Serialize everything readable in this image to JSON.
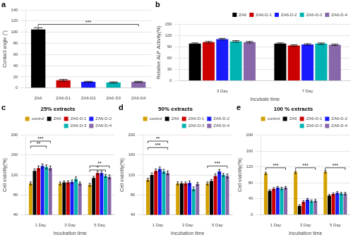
{
  "chart_data": [
    {
      "type": "bar",
      "panel_label": "a",
      "categories": [
        "ZA6",
        "ZA6-D1",
        "ZA6-D2",
        "ZA6-D3",
        "ZA6-D4"
      ],
      "values": [
        105,
        14,
        11,
        10,
        11
      ],
      "errors": [
        3,
        1.5,
        1,
        1,
        1
      ],
      "colors": [
        "#000000",
        "#cc0000",
        "#1a1aff",
        "#00b3b3",
        "#8866aa"
      ],
      "ylabel": "Contact angle (°)",
      "ylim": [
        0,
        140
      ],
      "yticks": [
        0,
        20,
        40,
        60,
        80,
        100,
        120,
        140
      ],
      "grid": "y",
      "annotations": [
        {
          "text": "***",
          "from": "ZA6",
          "to": "ZA6-D4",
          "y": 114
        }
      ]
    },
    {
      "type": "bar",
      "panel_label": "b",
      "categories": [
        "3 Day",
        "7 Day"
      ],
      "series": [
        {
          "name": "ZA6",
          "color": "#000000",
          "values": [
            98,
            98
          ],
          "errors": [
            2,
            2
          ]
        },
        {
          "name": "ZA6-D-1",
          "color": "#cc0000",
          "values": [
            102,
            93
          ],
          "errors": [
            2,
            2
          ]
        },
        {
          "name": "ZA6-D-2",
          "color": "#1a1aff",
          "values": [
            110,
            96
          ],
          "errors": [
            2,
            2
          ]
        },
        {
          "name": "ZA6-D-3",
          "color": "#00b3b3",
          "values": [
            104,
            98
          ],
          "errors": [
            2,
            2
          ]
        },
        {
          "name": "ZA6-D-4",
          "color": "#8866aa",
          "values": [
            102,
            95
          ],
          "errors": [
            2,
            2
          ]
        }
      ],
      "ylabel": "Relative ALP Activity(%)",
      "xlabel": "Incubate time",
      "ylim": [
        0,
        150
      ],
      "yticks": [
        0,
        30,
        60,
        90,
        120,
        150
      ],
      "grid": "y",
      "legend": "upper right"
    },
    {
      "type": "bar",
      "panel_label": "c",
      "title": "25% extracts",
      "categories": [
        "1 Day",
        "3 Day",
        "5 Day"
      ],
      "series": [
        {
          "name": "control",
          "color": "#d4a000",
          "values": [
            103,
            103,
            100
          ],
          "errors": [
            3,
            3,
            3
          ]
        },
        {
          "name": "ZA6",
          "color": "#000000",
          "values": [
            128,
            105,
            114
          ],
          "errors": [
            4,
            3,
            3
          ]
        },
        {
          "name": "ZA6-D-1",
          "color": "#cc0000",
          "values": [
            134,
            105,
            124
          ],
          "errors": [
            4,
            3,
            4
          ]
        },
        {
          "name": "ZA6-D-2",
          "color": "#1a1aff",
          "values": [
            138,
            106,
            124
          ],
          "errors": [
            4,
            4,
            4
          ]
        },
        {
          "name": "ZA6-D-3",
          "color": "#00b3b3",
          "values": [
            136,
            112,
            118
          ],
          "errors": [
            4,
            4,
            3
          ]
        },
        {
          "name": "ZA6-D-4",
          "color": "#8866aa",
          "values": [
            134,
            103,
            116
          ],
          "errors": [
            4,
            3,
            4
          ]
        }
      ],
      "ylabel": "Cell viability(%)",
      "xlabel": "Incubation time",
      "ylim": [
        40,
        200
      ],
      "yticks": [
        40,
        80,
        120,
        160,
        200
      ],
      "grid": "y",
      "legend": "upper right",
      "annotations": [
        {
          "text": "***",
          "category": "1 Day",
          "from": "control",
          "to": "ZA6-D-4",
          "y": 188
        },
        {
          "text": "**",
          "category": "1 Day",
          "from": "control",
          "to": "ZA6-D-3",
          "y": 178
        },
        {
          "text": "**",
          "category": "5 Day",
          "from": "control",
          "to": "ZA6-D-4",
          "y": 138
        },
        {
          "text": "*",
          "category": "5 Day",
          "from": "control",
          "to": "ZA6-D-3",
          "y": 130
        }
      ]
    },
    {
      "type": "bar",
      "panel_label": "d",
      "title": "50% extracts",
      "categories": [
        "1 Day",
        "3 Day",
        "5 Day"
      ],
      "series": [
        {
          "name": "control",
          "color": "#d4a000",
          "values": [
            110,
            103,
            103
          ],
          "errors": [
            3,
            3,
            3
          ]
        },
        {
          "name": "ZA6",
          "color": "#000000",
          "values": [
            120,
            103,
            108
          ],
          "errors": [
            4,
            3,
            3
          ]
        },
        {
          "name": "ZA6-D-1",
          "color": "#cc0000",
          "values": [
            128,
            103,
            118
          ],
          "errors": [
            4,
            3,
            4
          ]
        },
        {
          "name": "ZA6-D-2",
          "color": "#1a1aff",
          "values": [
            132,
            104,
            127
          ],
          "errors": [
            4,
            4,
            4
          ]
        },
        {
          "name": "ZA6-D-3",
          "color": "#00b3b3",
          "values": [
            127,
            92,
            120
          ],
          "errors": [
            4,
            4,
            3
          ]
        },
        {
          "name": "ZA6-D-4",
          "color": "#8866aa",
          "values": [
            124,
            102,
            118
          ],
          "errors": [
            4,
            3,
            4
          ]
        }
      ],
      "ylabel": "Cell viability(%)",
      "xlabel": "Incubation time",
      "ylim": [
        40,
        200
      ],
      "yticks": [
        40,
        80,
        120,
        160,
        200
      ],
      "grid": "y",
      "legend": "upper right",
      "annotations": [
        {
          "text": "**",
          "category": "1 Day",
          "from": "control",
          "to": "ZA6-D-4",
          "y": 188
        },
        {
          "text": "***",
          "category": "1 Day",
          "from": "control",
          "to": "ZA6-D-4",
          "y": 175
        },
        {
          "text": "***",
          "category": "5 Day",
          "from": "control",
          "to": "ZA6-D-4",
          "y": 138
        }
      ]
    },
    {
      "type": "bar",
      "panel_label": "e",
      "title": "100 % extracts",
      "categories": [
        "1 Day",
        "3 Day",
        "5 Day"
      ],
      "series": [
        {
          "name": "control",
          "color": "#d4a000",
          "values": [
            104,
            107,
            108
          ],
          "errors": [
            3,
            3,
            3
          ]
        },
        {
          "name": "ZA6",
          "color": "#000000",
          "values": [
            60,
            22,
            48
          ],
          "errors": [
            3,
            3,
            3
          ]
        },
        {
          "name": "ZA6-D-1",
          "color": "#cc0000",
          "values": [
            65,
            32,
            52
          ],
          "errors": [
            3,
            3,
            3
          ]
        },
        {
          "name": "ZA6-D-2",
          "color": "#1a1aff",
          "values": [
            68,
            38,
            55
          ],
          "errors": [
            3,
            3,
            3
          ]
        },
        {
          "name": "ZA6-D-3",
          "color": "#00b3b3",
          "values": [
            66,
            34,
            53
          ],
          "errors": [
            3,
            3,
            3
          ]
        },
        {
          "name": "ZA6-D-4",
          "color": "#8866aa",
          "values": [
            68,
            35,
            53
          ],
          "errors": [
            3,
            3,
            3
          ]
        }
      ],
      "ylabel": "Cell viability(%)",
      "xlabel": "Incubation time",
      "ylim": [
        0,
        200
      ],
      "yticks": [
        0,
        40,
        80,
        120,
        160,
        200
      ],
      "grid": "y",
      "legend": "upper right",
      "annotations": [
        {
          "text": "***",
          "category": "1 Day",
          "from": "control",
          "to": "ZA6-D-4",
          "y": 118
        },
        {
          "text": "***",
          "category": "3 Day",
          "from": "control",
          "to": "ZA6-D-4",
          "y": 118
        },
        {
          "text": "***",
          "category": "5 Day",
          "from": "control",
          "to": "ZA6-D-4",
          "y": 118
        }
      ]
    }
  ]
}
